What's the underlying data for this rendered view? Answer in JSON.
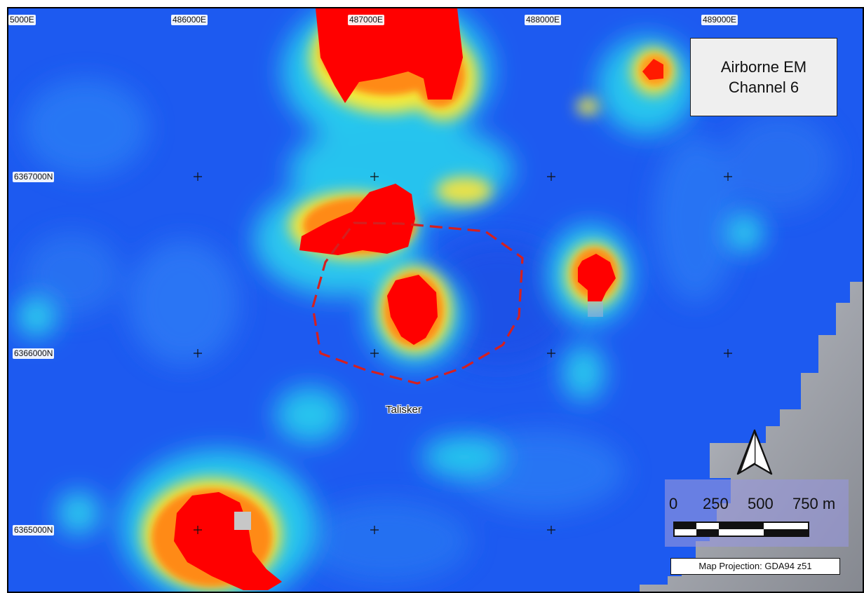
{
  "map": {
    "title_lines": [
      "Airborne EM",
      "Channel 6"
    ],
    "easting_labels": [
      "5000E",
      "486000E",
      "487000E",
      "488000E",
      "489000E"
    ],
    "northing_labels": [
      "6367000N",
      "6366000N",
      "6365000N"
    ],
    "place_label": "Talisker",
    "scalebar": {
      "tick_labels": [
        "0",
        "250",
        "500",
        "750 m"
      ]
    },
    "projection": "Map Projection: GDA94 z51",
    "north_arrow": "north-arrow-icon",
    "colors": {
      "background_low": "#1d5af0",
      "high_anomaly": "#ff0000",
      "prospect_outline": "#d42020",
      "hillshade": "#bdbdbd"
    }
  }
}
